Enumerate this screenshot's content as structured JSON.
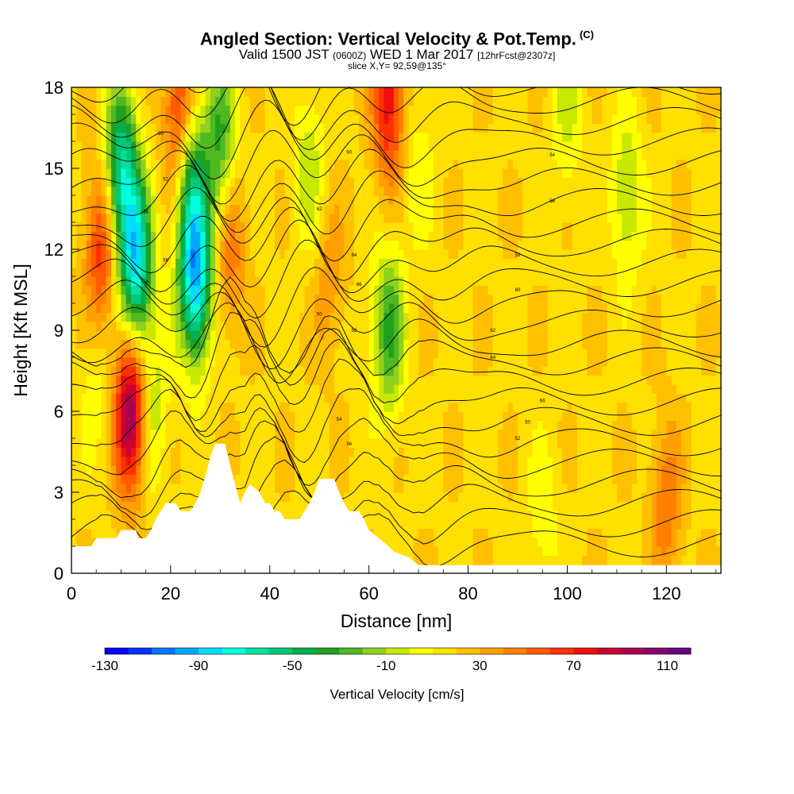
{
  "title": {
    "main": "Angled Section: Vertical Velocity & Pot.Temp.",
    "copyright": "(C)",
    "valid_label": "Valid 1500 JST",
    "valid_utc": "(0600Z)",
    "valid_date": "WED 1 Mar 2017",
    "forecast_info": "[12hrFcst@2307z]",
    "slice": "slice X,Y= 92,59@135°"
  },
  "chart_data": {
    "type": "heatmap",
    "title": "Angled Section: Vertical Velocity & Pot.Temp.",
    "xlabel": "Distance [nm]",
    "ylabel": "Height [Kft MSL]",
    "xlim": [
      0,
      131
    ],
    "ylim": [
      0,
      18
    ],
    "x_ticks": [
      0,
      20,
      40,
      60,
      80,
      100,
      120
    ],
    "y_ticks": [
      0,
      3,
      6,
      9,
      12,
      15,
      18
    ],
    "colorbar": {
      "label": "Vertical Velocity [cm/s]",
      "tick_labels": [
        "-130",
        "-90",
        "-50",
        "-10",
        "30",
        "70",
        "110"
      ],
      "tick_values": [
        -130,
        -90,
        -50,
        -10,
        30,
        70,
        110
      ],
      "range": [
        -130,
        120
      ],
      "colors": [
        "#0000ff",
        "#0033ff",
        "#0077ff",
        "#00aaff",
        "#00ddff",
        "#00ffdd",
        "#00e0a0",
        "#00c878",
        "#00b050",
        "#20a020",
        "#50b820",
        "#90d020",
        "#c8e800",
        "#ffff00",
        "#ffe000",
        "#ffc000",
        "#ffa000",
        "#ff8000",
        "#ff5a00",
        "#ff3000",
        "#ee1010",
        "#cc0030",
        "#aa0050",
        "#880070",
        "#660088"
      ]
    },
    "velocity_features": [
      {
        "x": 12,
        "y": 6,
        "value": 90
      },
      {
        "x": 6,
        "y": 12,
        "value": 50
      },
      {
        "x": 22,
        "y": 17,
        "value": 60
      },
      {
        "x": 64,
        "y": 17.5,
        "value": 60
      },
      {
        "x": 32,
        "y": 12,
        "value": 30
      },
      {
        "x": 52,
        "y": 11,
        "value": 20
      },
      {
        "x": 10,
        "y": 15,
        "value": -80
      },
      {
        "x": 13,
        "y": 11.5,
        "value": -100
      },
      {
        "x": 25,
        "y": 11,
        "value": -110
      },
      {
        "x": 24,
        "y": 15,
        "value": -60
      },
      {
        "x": 30,
        "y": 16,
        "value": -50
      },
      {
        "x": 64,
        "y": 9,
        "value": -50
      },
      {
        "x": 48,
        "y": 15,
        "value": -25
      },
      {
        "x": 70,
        "y": 15,
        "value": -15
      },
      {
        "x": 112,
        "y": 14,
        "value": -30
      },
      {
        "x": 100,
        "y": 17,
        "value": -20
      },
      {
        "x": 16,
        "y": 6,
        "value": -30
      },
      {
        "x": 5,
        "y": 7,
        "value": -15
      },
      {
        "x": 95,
        "y": 2,
        "value": -15
      },
      {
        "x": 120,
        "y": 2.5,
        "value": 30
      }
    ],
    "contour_label_values": [
      "50",
      "52",
      "54",
      "56",
      "58",
      "60",
      "62",
      "64",
      "66"
    ],
    "terrain": [
      {
        "x": 0,
        "h": 1.0
      },
      {
        "x": 4,
        "h": 1.0
      },
      {
        "x": 5,
        "h": 1.3
      },
      {
        "x": 9,
        "h": 1.3
      },
      {
        "x": 10,
        "h": 1.6
      },
      {
        "x": 13,
        "h": 1.6
      },
      {
        "x": 13.5,
        "h": 1.3
      },
      {
        "x": 15,
        "h": 1.3
      },
      {
        "x": 16,
        "h": 1.6
      },
      {
        "x": 17,
        "h": 2.0
      },
      {
        "x": 18,
        "h": 2.3
      },
      {
        "x": 19,
        "h": 2.6
      },
      {
        "x": 21,
        "h": 2.6
      },
      {
        "x": 22,
        "h": 2.3
      },
      {
        "x": 24,
        "h": 2.3
      },
      {
        "x": 25,
        "h": 2.6
      },
      {
        "x": 26,
        "h": 3.0
      },
      {
        "x": 27,
        "h": 3.6
      },
      {
        "x": 28,
        "h": 4.3
      },
      {
        "x": 29,
        "h": 4.8
      },
      {
        "x": 31,
        "h": 4.8
      },
      {
        "x": 32,
        "h": 4.0
      },
      {
        "x": 33,
        "h": 3.3
      },
      {
        "x": 34,
        "h": 2.6
      },
      {
        "x": 35,
        "h": 3.0
      },
      {
        "x": 36,
        "h": 3.3
      },
      {
        "x": 38,
        "h": 3.0
      },
      {
        "x": 39,
        "h": 2.6
      },
      {
        "x": 40,
        "h": 2.6
      },
      {
        "x": 41,
        "h": 2.3
      },
      {
        "x": 42,
        "h": 2.3
      },
      {
        "x": 43,
        "h": 2.0
      },
      {
        "x": 46,
        "h": 2.0
      },
      {
        "x": 47,
        "h": 2.3
      },
      {
        "x": 48,
        "h": 2.6
      },
      {
        "x": 49,
        "h": 3.0
      },
      {
        "x": 50,
        "h": 3.5
      },
      {
        "x": 53,
        "h": 3.5
      },
      {
        "x": 54,
        "h": 3.0
      },
      {
        "x": 55,
        "h": 2.6
      },
      {
        "x": 56,
        "h": 2.3
      },
      {
        "x": 58,
        "h": 2.3
      },
      {
        "x": 59,
        "h": 2.0
      },
      {
        "x": 60,
        "h": 1.6
      },
      {
        "x": 62,
        "h": 1.3
      },
      {
        "x": 64,
        "h": 1.0
      },
      {
        "x": 65,
        "h": 0.8
      },
      {
        "x": 68,
        "h": 0.6
      },
      {
        "x": 70,
        "h": 0.3
      },
      {
        "x": 131,
        "h": 0.3
      }
    ]
  }
}
